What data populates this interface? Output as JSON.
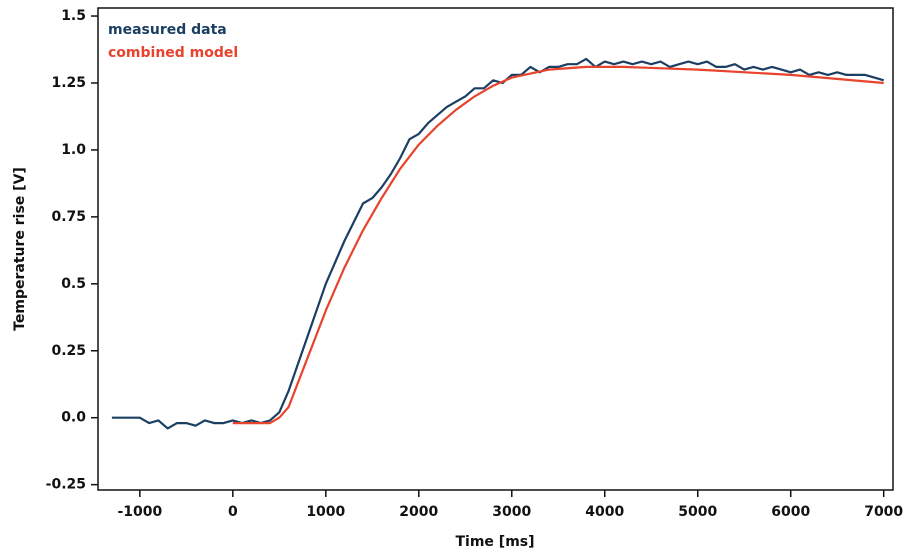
{
  "chart_data": {
    "type": "line",
    "x_label": "Time [ms]",
    "y_label": "Temperature rise [V]",
    "xlim": [
      -1450,
      7100
    ],
    "ylim": [
      -0.27,
      1.53
    ],
    "xticks": [
      -1000,
      0,
      1000,
      2000,
      3000,
      4000,
      5000,
      6000,
      7000
    ],
    "yticks": [
      -0.25,
      {
        "value": 0,
        "label": "0.0"
      },
      0.25,
      0.5,
      0.75,
      {
        "value": 1,
        "label": "1.0"
      },
      1.25,
      1.5
    ],
    "legend": "upper left",
    "series": [
      {
        "name": "measured data",
        "color": "#1b3f63",
        "x": [
          -1300,
          -1200,
          -1100,
          -1000,
          -900,
          -800,
          -700,
          -600,
          -500,
          -400,
          -300,
          -200,
          -100,
          0,
          100,
          200,
          300,
          400,
          500,
          600,
          700,
          800,
          900,
          1000,
          1100,
          1200,
          1300,
          1400,
          1500,
          1600,
          1700,
          1800,
          1900,
          2000,
          2100,
          2200,
          2300,
          2400,
          2500,
          2600,
          2700,
          2800,
          2900,
          3000,
          3100,
          3200,
          3300,
          3400,
          3500,
          3600,
          3700,
          3800,
          3900,
          4000,
          4100,
          4200,
          4300,
          4400,
          4500,
          4600,
          4700,
          4800,
          4900,
          5000,
          5100,
          5200,
          5300,
          5400,
          5500,
          5600,
          5700,
          5800,
          5900,
          6000,
          6100,
          6200,
          6300,
          6400,
          6500,
          6600,
          6700,
          6800,
          6900,
          7000
        ],
        "values": [
          0,
          0,
          0,
          0,
          -0.02,
          -0.01,
          -0.04,
          -0.02,
          -0.02,
          -0.03,
          -0.01,
          -0.02,
          -0.02,
          -0.01,
          -0.02,
          -0.01,
          -0.02,
          -0.01,
          0.02,
          0.1,
          0.2,
          0.3,
          0.4,
          0.5,
          0.58,
          0.66,
          0.73,
          0.8,
          0.82,
          0.86,
          0.91,
          0.97,
          1.04,
          1.06,
          1.1,
          1.13,
          1.16,
          1.18,
          1.2,
          1.23,
          1.23,
          1.26,
          1.25,
          1.28,
          1.28,
          1.31,
          1.29,
          1.31,
          1.31,
          1.32,
          1.32,
          1.34,
          1.31,
          1.33,
          1.32,
          1.33,
          1.32,
          1.33,
          1.32,
          1.33,
          1.31,
          1.32,
          1.33,
          1.32,
          1.33,
          1.31,
          1.31,
          1.32,
          1.3,
          1.31,
          1.3,
          1.31,
          1.3,
          1.29,
          1.3,
          1.28,
          1.29,
          1.28,
          1.29,
          1.28,
          1.28,
          1.28,
          1.27,
          1.26
        ]
      },
      {
        "name": "combined model",
        "color": "#e8432c",
        "x": [
          0,
          200,
          400,
          500,
          600,
          800,
          1000,
          1200,
          1400,
          1600,
          1800,
          2000,
          2200,
          2400,
          2600,
          2800,
          3000,
          3400,
          3800,
          4200,
          5000,
          6000,
          7000
        ],
        "values": [
          -0.02,
          -0.02,
          -0.02,
          0,
          0.04,
          0.22,
          0.4,
          0.56,
          0.7,
          0.82,
          0.93,
          1.02,
          1.09,
          1.15,
          1.2,
          1.24,
          1.27,
          1.3,
          1.31,
          1.31,
          1.3,
          1.28,
          1.25
        ]
      }
    ]
  }
}
